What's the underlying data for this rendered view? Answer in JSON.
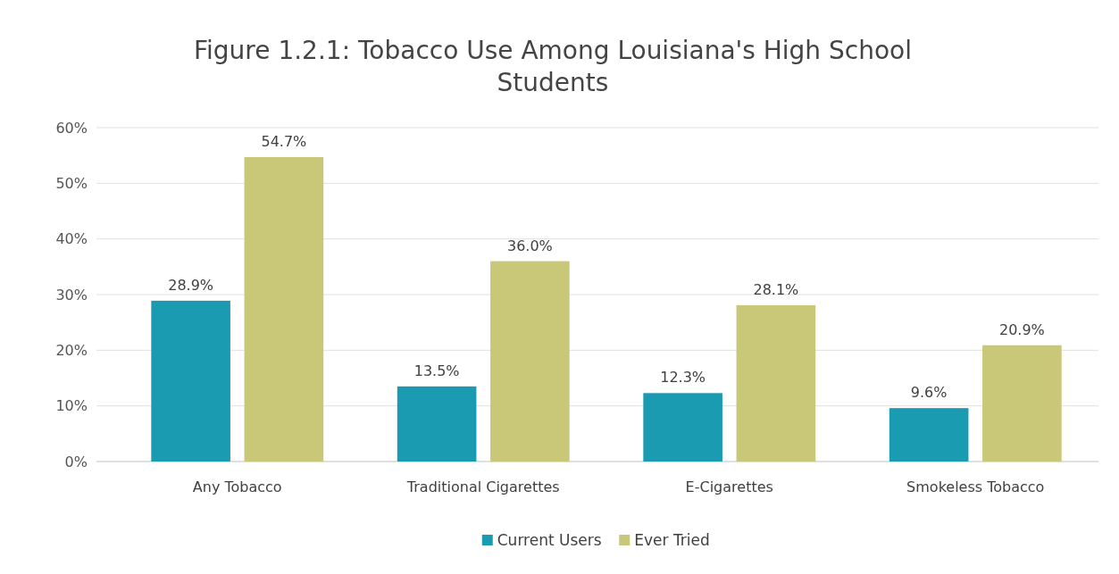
{
  "chart_data": {
    "type": "bar",
    "title": "Figure 1.2.1: Tobacco Use Among Louisiana's High School Students",
    "categories": [
      "Any Tobacco",
      "Traditional Cigarettes",
      "E-Cigarettes",
      "Smokeless Tobacco"
    ],
    "series": [
      {
        "name": "Current Users",
        "color": "#1b9bb2",
        "values": [
          28.9,
          13.5,
          12.3,
          9.6
        ],
        "value_labels": [
          "28.9%",
          "13.5%",
          "12.3%",
          "9.6%"
        ]
      },
      {
        "name": "Ever Tried",
        "color": "#c8c878",
        "values": [
          54.7,
          36.0,
          28.1,
          20.9
        ],
        "value_labels": [
          "54.7%",
          "36.0%",
          "28.1%",
          "20.9%"
        ]
      }
    ],
    "ylim": [
      0,
      60
    ],
    "yticks": [
      {
        "value": 0,
        "label": "0%"
      },
      {
        "value": 10,
        "label": "10%"
      },
      {
        "value": 20,
        "label": "20%"
      },
      {
        "value": 30,
        "label": "30%"
      },
      {
        "value": 40,
        "label": "40%"
      },
      {
        "value": 50,
        "label": "50%"
      },
      {
        "value": 60,
        "label": "60%"
      }
    ],
    "grid": "y",
    "legend": "bottom"
  }
}
